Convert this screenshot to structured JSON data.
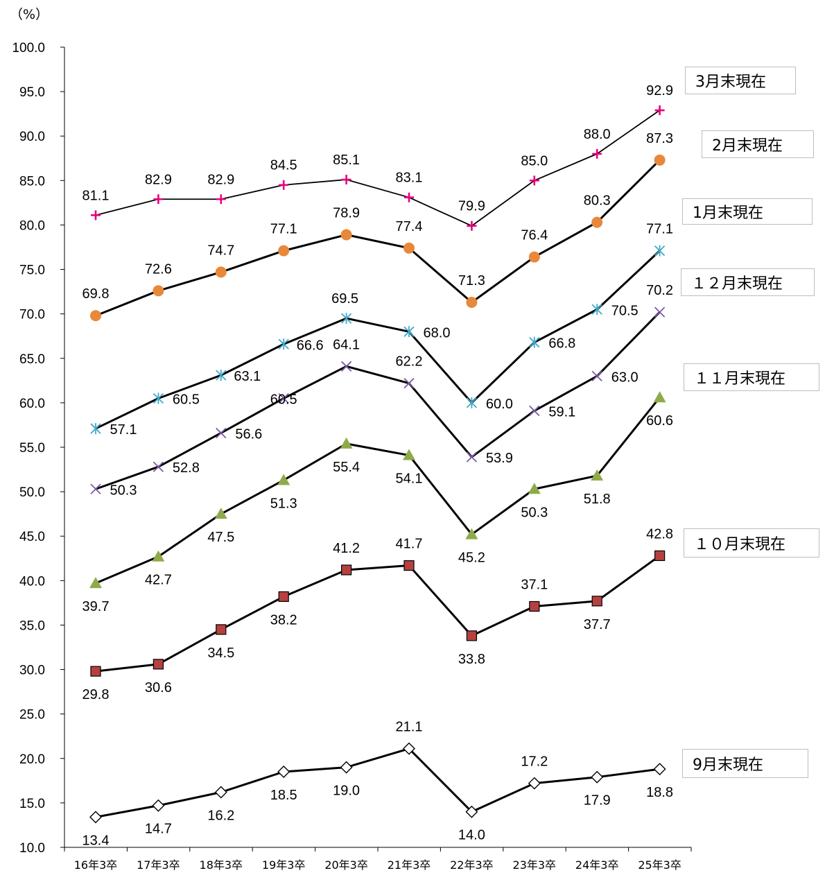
{
  "unit_label": "（%）",
  "chart_data": {
    "type": "line",
    "categories": [
      "16年3卒",
      "17年3卒",
      "18年3卒",
      "19年3卒",
      "20年3卒",
      "21年3卒",
      "22年3卒",
      "23年3卒",
      "24年3卒",
      "25年3卒"
    ],
    "ylim": [
      10,
      100
    ],
    "ystep": 5,
    "grid": false,
    "series": [
      {
        "name": "3月末現在",
        "values": [
          81.1,
          82.9,
          82.9,
          84.5,
          85.1,
          83.1,
          79.9,
          85.0,
          88.0,
          92.9
        ],
        "marker": "plus",
        "color": "#e6007e",
        "line_width": 1.8
      },
      {
        "name": "2月末現在",
        "values": [
          69.8,
          72.6,
          74.7,
          77.1,
          78.9,
          77.4,
          71.3,
          76.4,
          80.3,
          87.3
        ],
        "marker": "circle",
        "color": "#e8883a",
        "line_width": 3
      },
      {
        "name": "1月末現在",
        "values": [
          57.1,
          60.5,
          63.1,
          66.6,
          69.5,
          68.0,
          60.0,
          66.8,
          70.5,
          77.1
        ],
        "marker": "asterisk",
        "color": "#3fa9c9",
        "line_width": 3
      },
      {
        "name": "12月末現在",
        "values": [
          50.3,
          52.8,
          56.6,
          60.5,
          64.1,
          62.2,
          53.9,
          59.1,
          63.0,
          70.2
        ],
        "marker": "x",
        "color": "#7b5aa6",
        "line_width": 3
      },
      {
        "name": "11月末現在",
        "values": [
          39.7,
          42.7,
          47.5,
          51.3,
          55.4,
          54.1,
          45.2,
          50.3,
          51.8,
          60.6
        ],
        "marker": "triangle",
        "color": "#8faa4a",
        "line_width": 3
      },
      {
        "name": "10月末現在",
        "values": [
          29.8,
          30.6,
          34.5,
          38.2,
          41.2,
          41.7,
          33.8,
          37.1,
          37.7,
          42.8
        ],
        "marker": "square",
        "color": "#b5413f",
        "line_width": 3
      },
      {
        "name": "9月末現在",
        "values": [
          13.4,
          14.7,
          16.2,
          18.5,
          19.0,
          21.1,
          14.0,
          17.2,
          17.9,
          18.8
        ],
        "marker": "diamond",
        "color": "#ffffff",
        "line_width": 3
      }
    ]
  },
  "legend": [
    {
      "label": "3月末現在"
    },
    {
      "label": "2月末現在"
    },
    {
      "label": "1月末現在"
    },
    {
      "label": "１２月末現在"
    },
    {
      "label": "１１月末現在"
    },
    {
      "label": "１０月末現在"
    },
    {
      "label": "9月末現在"
    }
  ]
}
